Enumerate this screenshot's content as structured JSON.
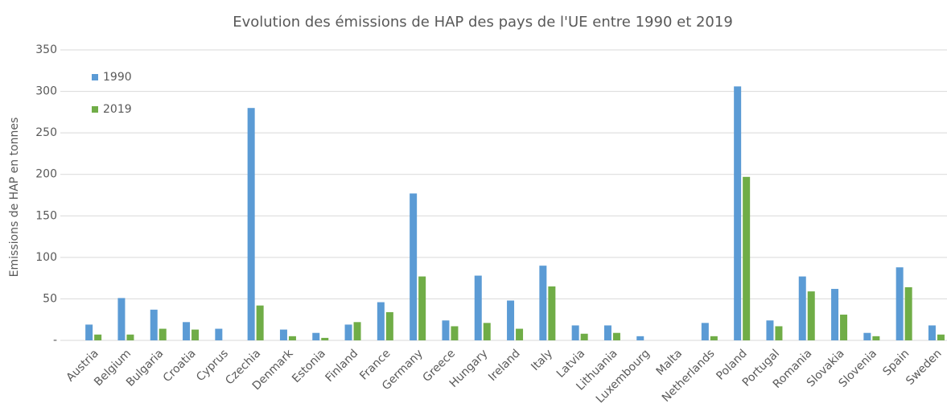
{
  "chart_data": {
    "type": "bar",
    "title": "Evolution des émissions de HAP des pays de l'UE entre 1990 et 2019",
    "y_label": "Emissions de HAP en tonnes",
    "categories": [
      "Austria",
      "Belgium",
      "Bulgaria",
      "Croatia",
      "Cyprus",
      "Czechia",
      "Denmark",
      "Estonia",
      "Finland",
      "France",
      "Germany",
      "Greece",
      "Hungary",
      "Ireland",
      "Italy",
      "Latvia",
      "Lithuania",
      "Luxembourg",
      "Malta",
      "Netherlands",
      "Poland",
      "Portugal",
      "Romania",
      "Slovakia",
      "Slovenia",
      "Spain",
      "Sweden"
    ],
    "series": [
      {
        "name": "1990",
        "color": "#5b9bd5",
        "values": [
          19,
          51,
          37,
          22,
          14,
          280,
          13,
          9,
          19,
          46,
          177,
          24,
          78,
          48,
          90,
          18,
          18,
          5,
          0,
          21,
          306,
          24,
          77,
          62,
          9,
          88,
          18
        ]
      },
      {
        "name": "2019",
        "color": "#70ad47",
        "values": [
          7,
          7,
          14,
          13,
          0,
          42,
          5,
          3,
          22,
          34,
          77,
          17,
          21,
          14,
          65,
          8,
          9,
          0,
          0,
          5,
          197,
          17,
          59,
          31,
          5,
          64,
          7
        ]
      }
    ],
    "ylim": [
      0,
      350
    ],
    "yticks": [
      {
        "value": 0,
        "label": "-"
      },
      50,
      100,
      150,
      200,
      250,
      300,
      350
    ],
    "grid": true,
    "legend": "top-left"
  }
}
